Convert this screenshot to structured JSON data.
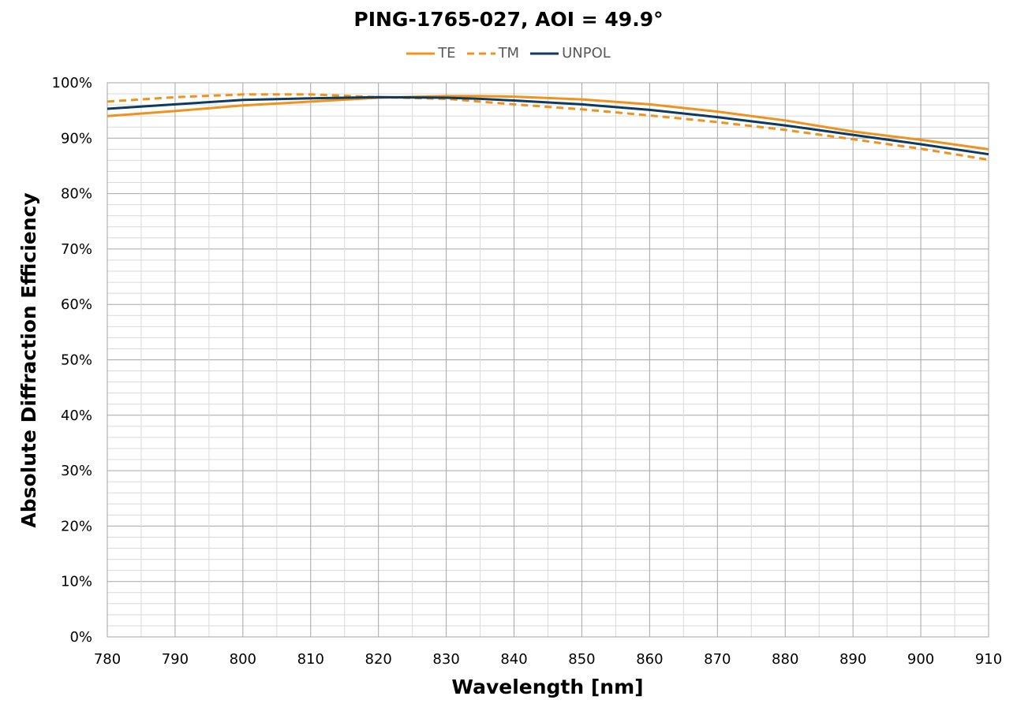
{
  "chart_data": {
    "type": "line",
    "title": "PING-1765-027, AOI = 49.9°",
    "xlabel": "Wavelength [nm]",
    "ylabel": "Absolute Diffraction Efficiency",
    "xlim": [
      780,
      910
    ],
    "ylim": [
      0,
      100
    ],
    "x_ticks": [
      "780",
      "790",
      "800",
      "810",
      "820",
      "830",
      "840",
      "850",
      "860",
      "870",
      "880",
      "890",
      "900",
      "910"
    ],
    "y_ticks": [
      "0%",
      "10%",
      "20%",
      "30%",
      "40%",
      "50%",
      "60%",
      "70%",
      "80%",
      "90%",
      "100%"
    ],
    "grid": true,
    "legend_position": "top",
    "x": [
      780,
      790,
      800,
      810,
      820,
      830,
      835,
      840,
      850,
      860,
      870,
      880,
      890,
      900,
      910
    ],
    "series": [
      {
        "name": "TE",
        "color": "#F0921E",
        "dash": "solid",
        "values": [
          94.0,
          94.9,
          95.9,
          96.6,
          97.3,
          97.6,
          97.6,
          97.5,
          97.0,
          96.1,
          94.8,
          93.2,
          91.2,
          89.7,
          88.0
        ]
      },
      {
        "name": "TM",
        "color": "#F0921E",
        "dash": "dashed",
        "values": [
          96.6,
          97.4,
          97.9,
          97.9,
          97.4,
          97.1,
          96.6,
          96.1,
          95.2,
          94.1,
          92.9,
          91.5,
          89.8,
          88.1,
          86.1
        ]
      },
      {
        "name": "UNPOL",
        "color": "#0E3A5F",
        "dash": "solid",
        "values": [
          95.3,
          96.1,
          96.9,
          97.2,
          97.4,
          97.3,
          97.1,
          96.8,
          96.1,
          95.1,
          93.8,
          92.3,
          90.6,
          88.9,
          87.1
        ]
      }
    ]
  }
}
